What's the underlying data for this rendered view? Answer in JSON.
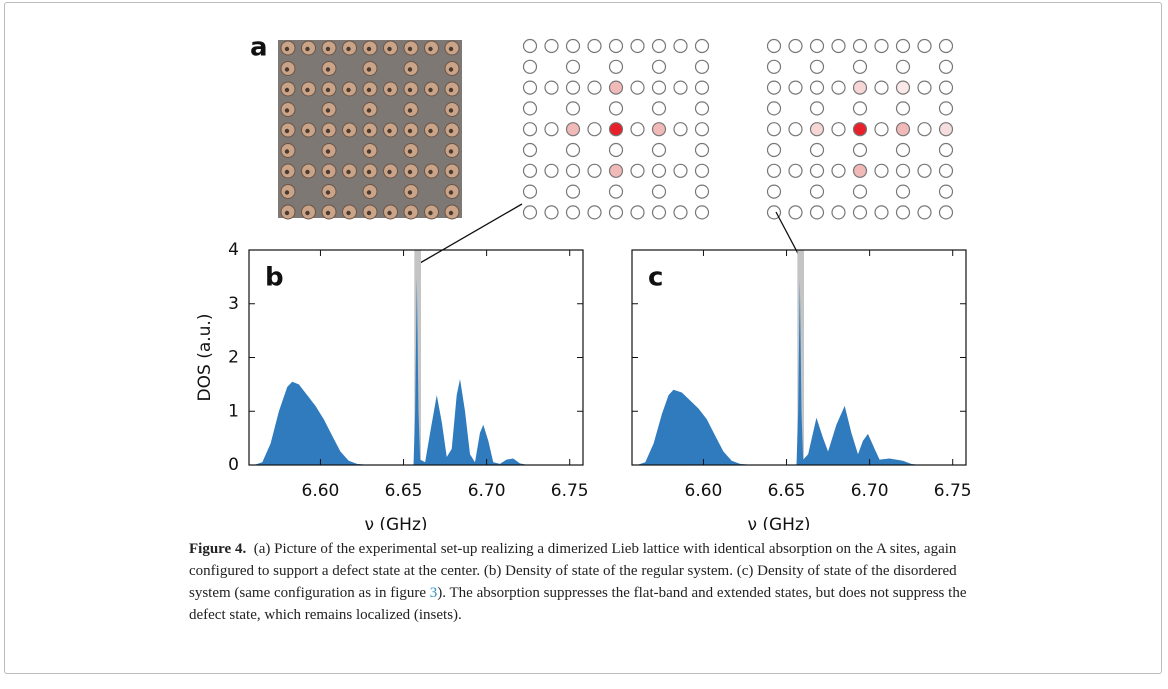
{
  "panel_a": {
    "label": "a"
  },
  "chart_data": [
    {
      "type": "area",
      "panel": "b",
      "ylabel": "DOS (a.u.)",
      "xlabel": "ν (GHz)",
      "color": "#2f7bbd",
      "highlight": [
        6.6565,
        6.6605
      ],
      "xlim": [
        6.557,
        6.758
      ],
      "ylim": [
        0,
        4
      ],
      "xticks": [
        {
          "value": 6.6,
          "label": "6.60"
        },
        6.65,
        {
          "value": 6.7,
          "label": "6.70"
        },
        6.75
      ],
      "yticks": [
        0,
        1,
        2,
        3,
        4
      ],
      "x": [
        6.56,
        6.565,
        6.57,
        6.575,
        6.58,
        6.583,
        6.587,
        6.592,
        6.597,
        6.602,
        6.607,
        6.612,
        6.617,
        6.622,
        6.63,
        6.65,
        6.656,
        6.657,
        6.658,
        6.659,
        6.66,
        6.663,
        6.666,
        6.67,
        6.673,
        6.676,
        6.679,
        6.682,
        6.684,
        6.687,
        6.69,
        6.693,
        6.696,
        6.698,
        6.701,
        6.704,
        6.708,
        6.712,
        6.716,
        6.72,
        6.725,
        6.758
      ],
      "values": [
        0,
        0.05,
        0.4,
        1.0,
        1.45,
        1.55,
        1.5,
        1.3,
        1.1,
        0.85,
        0.55,
        0.25,
        0.08,
        0.02,
        0,
        0,
        0,
        1.0,
        3.5,
        1.0,
        0.1,
        0.05,
        0.6,
        1.3,
        0.8,
        0.15,
        0.3,
        1.3,
        1.6,
        1.0,
        0.2,
        0.05,
        0.6,
        0.75,
        0.45,
        0.05,
        0.02,
        0.1,
        0.12,
        0.03,
        0,
        0
      ]
    },
    {
      "type": "area",
      "panel": "c",
      "xlabel": "ν (GHz)",
      "color": "#2f7bbd",
      "highlight": [
        6.6565,
        6.6605
      ],
      "xlim": [
        6.557,
        6.758
      ],
      "ylim": [
        0,
        4
      ],
      "xticks": [
        {
          "value": 6.6,
          "label": "6.60"
        },
        6.65,
        {
          "value": 6.7,
          "label": "6.70"
        },
        6.75
      ],
      "yticks": [
        0,
        1,
        2,
        3,
        4
      ],
      "x": [
        6.56,
        6.565,
        6.57,
        6.575,
        6.579,
        6.582,
        6.587,
        6.592,
        6.597,
        6.602,
        6.607,
        6.612,
        6.617,
        6.622,
        6.63,
        6.65,
        6.656,
        6.657,
        6.658,
        6.659,
        6.66,
        6.663,
        6.668,
        6.672,
        6.675,
        6.68,
        6.685,
        6.689,
        6.693,
        6.696,
        6.699,
        6.703,
        6.706,
        6.712,
        6.72,
        6.725,
        6.73,
        6.758
      ],
      "values": [
        0,
        0.05,
        0.4,
        0.95,
        1.3,
        1.4,
        1.35,
        1.2,
        1.05,
        0.85,
        0.55,
        0.25,
        0.08,
        0.02,
        0,
        0,
        0,
        1.0,
        3.45,
        1.0,
        0.1,
        0.2,
        0.88,
        0.5,
        0.25,
        0.75,
        1.1,
        0.6,
        0.2,
        0.45,
        0.58,
        0.3,
        0.1,
        0.12,
        0.08,
        0.02,
        0,
        0
      ]
    }
  ],
  "caption": {
    "label": "Figure 4.",
    "text_1": "(a) Picture of the experimental set-up realizing a dimerized Lieb lattice with identical absorption on the A sites, again configured to support a defect state at the center. (b) Density of state of the regular system. (c) Density of state of the disordered system (same configuration as in figure ",
    "ref": "3",
    "text_2": "). The absorption suppresses the flat-band and extended states, but does not suppress the defect state, which remains localized (insets)."
  }
}
